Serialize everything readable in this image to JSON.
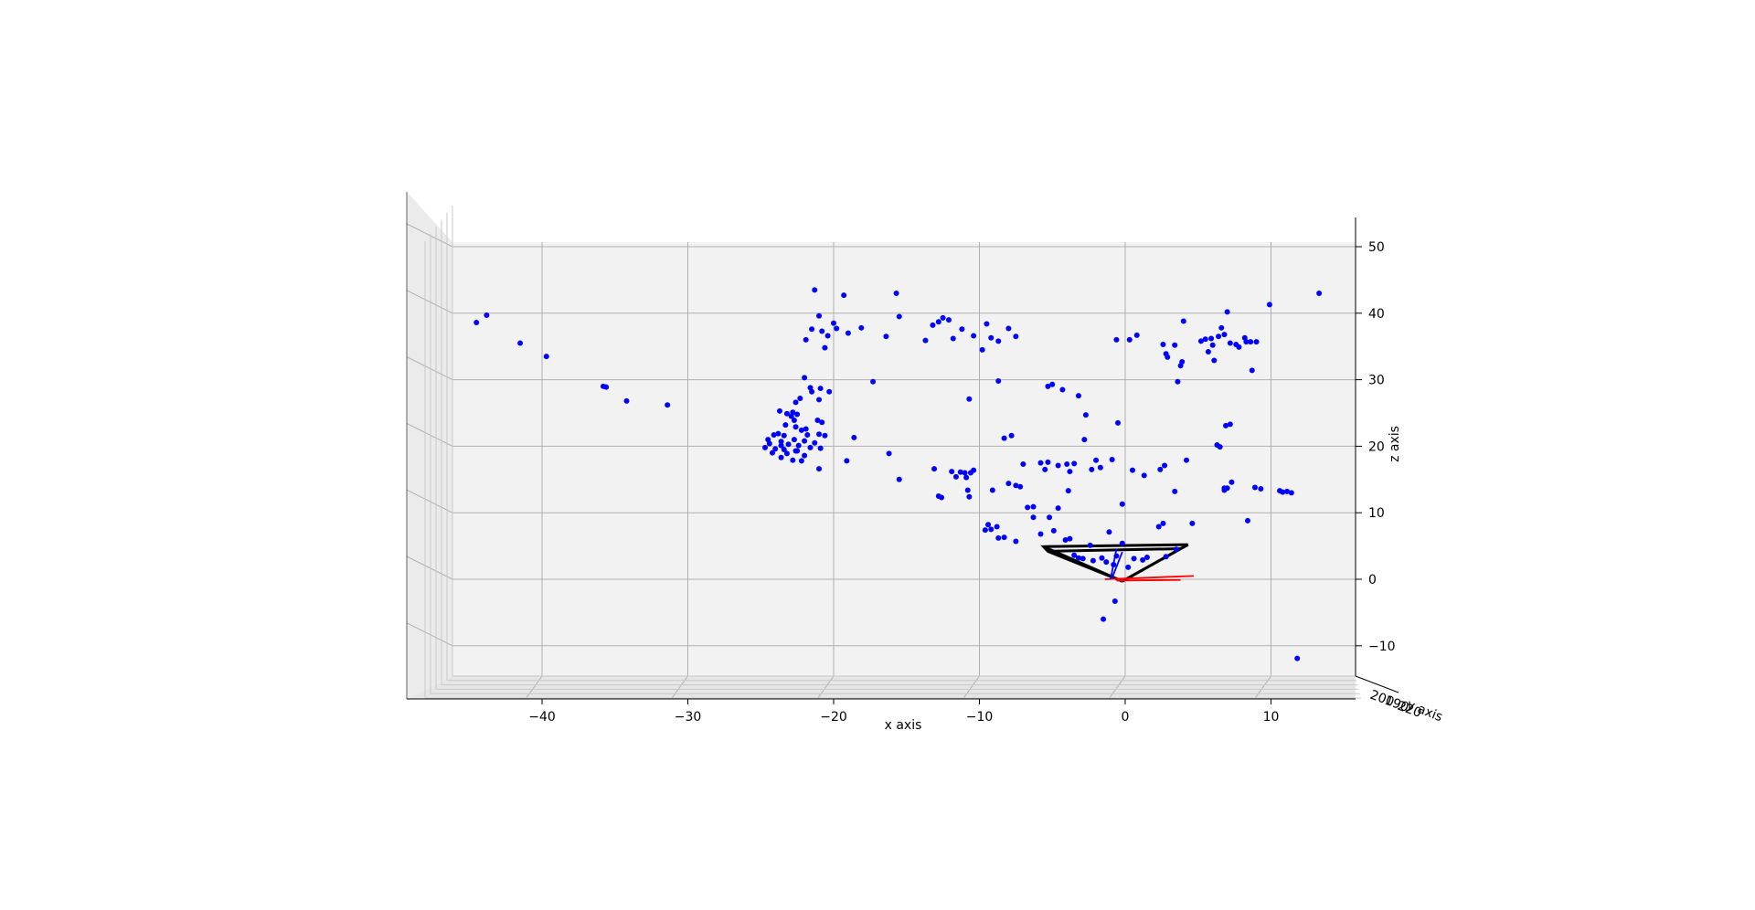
{
  "chart_data": {
    "type": "scatter",
    "projection": "3d",
    "view": "front (x–z plane, y axis pointing into the screen)",
    "title": "",
    "xlabel": "x axis",
    "ylabel": "y axis",
    "zlabel": "z axis",
    "xlim": [
      -50,
      15
    ],
    "zlim": [
      -15,
      55
    ],
    "x_ticks": [
      -40,
      -30,
      -20,
      -10,
      0,
      10
    ],
    "x_tick_labels": [
      "−40",
      "−30",
      "−20",
      "−10",
      "0",
      "10"
    ],
    "z_ticks": [
      -10,
      0,
      10,
      20,
      30,
      40,
      50
    ],
    "z_tick_labels": [
      "−10",
      "0",
      "10",
      "20",
      "30",
      "40",
      "50"
    ],
    "y_tick_labels_visible": "200 190 210 220 230 (overlapping)",
    "grid": true,
    "point_color": "#0000ff",
    "points": [
      [
        -44.5,
        38.6
      ],
      [
        -43.8,
        39.7
      ],
      [
        -41.5,
        35.5
      ],
      [
        -39.7,
        33.5
      ],
      [
        -35.8,
        29
      ],
      [
        -35.6,
        28.9
      ],
      [
        -34.2,
        26.8
      ],
      [
        -31.4,
        26.2
      ],
      [
        -21.9,
        36
      ],
      [
        -21.5,
        37.6
      ],
      [
        -21.3,
        43.5
      ],
      [
        -21,
        39.6
      ],
      [
        -20.8,
        37.3
      ],
      [
        -20.6,
        34.8
      ],
      [
        -20.4,
        36.6
      ],
      [
        -20,
        38.5
      ],
      [
        -19.8,
        37.7
      ],
      [
        -19.3,
        42.7
      ],
      [
        -19,
        37
      ],
      [
        -18.1,
        37.8
      ],
      [
        -16.4,
        36.5
      ],
      [
        -15.7,
        43
      ],
      [
        -15.5,
        39.5
      ],
      [
        -13.7,
        35.9
      ],
      [
        -13.2,
        38.2
      ],
      [
        -12.8,
        38.7
      ],
      [
        -12.5,
        39.3
      ],
      [
        -12.1,
        39
      ],
      [
        -11.8,
        36.2
      ],
      [
        -11.2,
        37.6
      ],
      [
        -10.4,
        36.6
      ],
      [
        -9.8,
        34.5
      ],
      [
        -9.5,
        38.4
      ],
      [
        -9.2,
        36.3
      ],
      [
        -8.7,
        35.8
      ],
      [
        -8,
        37.7
      ],
      [
        -7.5,
        36.5
      ],
      [
        -0.6,
        36
      ],
      [
        0.3,
        36
      ],
      [
        0.8,
        36.7
      ],
      [
        2.6,
        35.3
      ],
      [
        2.8,
        33.9
      ],
      [
        2.9,
        33.4
      ],
      [
        3.4,
        35.2
      ],
      [
        3.6,
        29.7
      ],
      [
        3.8,
        32.1
      ],
      [
        3.9,
        32.7
      ],
      [
        4,
        38.8
      ],
      [
        5.2,
        35.8
      ],
      [
        5.5,
        36.1
      ],
      [
        5.7,
        34.2
      ],
      [
        5.9,
        36.2
      ],
      [
        6,
        35.2
      ],
      [
        6.1,
        32.9
      ],
      [
        6.4,
        36.5
      ],
      [
        6.6,
        37.8
      ],
      [
        6.8,
        36.8
      ],
      [
        7,
        40.2
      ],
      [
        7.2,
        35.5
      ],
      [
        7.6,
        35.3
      ],
      [
        7.8,
        34.9
      ],
      [
        8.2,
        36.3
      ],
      [
        8.3,
        35.7
      ],
      [
        8.6,
        35.7
      ],
      [
        8.7,
        31.4
      ],
      [
        9,
        35.7
      ],
      [
        9.9,
        41.3
      ],
      [
        13.3,
        43
      ],
      [
        -22,
        30.3
      ],
      [
        -21.6,
        28.8
      ],
      [
        -21.5,
        28.2
      ],
      [
        -20.9,
        28.7
      ],
      [
        -20.3,
        28.2
      ],
      [
        -21,
        27
      ],
      [
        -22.6,
        26.6
      ],
      [
        -22.3,
        27.2
      ],
      [
        -23.7,
        25.3
      ],
      [
        -22.8,
        25.1
      ],
      [
        -22.5,
        24.8
      ],
      [
        -23.2,
        24.9
      ],
      [
        -22.9,
        24.5
      ],
      [
        -22.7,
        23.9
      ],
      [
        -21.1,
        23.9
      ],
      [
        -20.8,
        23.6
      ],
      [
        -23.3,
        23.2
      ],
      [
        -22.6,
        22.9
      ],
      [
        -21.9,
        22.6
      ],
      [
        -22.2,
        22.4
      ],
      [
        -23.8,
        21.9
      ],
      [
        -24.1,
        21.7
      ],
      [
        -23.4,
        21.6
      ],
      [
        -21.8,
        21.7
      ],
      [
        -21,
        21.8
      ],
      [
        -20.6,
        21.6
      ],
      [
        -24.5,
        21
      ],
      [
        -23.6,
        20.7
      ],
      [
        -22.7,
        21
      ],
      [
        -22,
        20.8
      ],
      [
        -21.3,
        20.5
      ],
      [
        -24.4,
        20.4
      ],
      [
        -23.1,
        20.3
      ],
      [
        -22.4,
        20.1
      ],
      [
        -23.6,
        20.1
      ],
      [
        -24.7,
        19.8
      ],
      [
        -24,
        19.6
      ],
      [
        -23.4,
        19.5
      ],
      [
        -22.6,
        19.3
      ],
      [
        -21.6,
        19.8
      ],
      [
        -20.9,
        19.7
      ],
      [
        -24.2,
        19
      ],
      [
        -23.2,
        18.9
      ],
      [
        -22.5,
        19.3
      ],
      [
        -22,
        18.6
      ],
      [
        -23.6,
        18.3
      ],
      [
        -22.8,
        17.9
      ],
      [
        -22.2,
        17.8
      ],
      [
        -21,
        16.6
      ],
      [
        -19.1,
        17.8
      ],
      [
        -18.6,
        21.3
      ],
      [
        -17.3,
        29.7
      ],
      [
        -16.2,
        18.9
      ],
      [
        -15.5,
        15
      ],
      [
        -13.1,
        16.6
      ],
      [
        -12.8,
        12.5
      ],
      [
        -12.6,
        12.3
      ],
      [
        -11.9,
        16.2
      ],
      [
        -11.6,
        15.4
      ],
      [
        -11.3,
        16.1
      ],
      [
        -11,
        16
      ],
      [
        -10.9,
        15.3
      ],
      [
        -10.6,
        16
      ],
      [
        -10.4,
        16.4
      ],
      [
        -10.8,
        13.4
      ],
      [
        -10.7,
        12.4
      ],
      [
        -10.7,
        27.1
      ],
      [
        -9.1,
        13.4
      ],
      [
        -8.7,
        29.8
      ],
      [
        -8.3,
        21.2
      ],
      [
        -8,
        14.4
      ],
      [
        -7.8,
        21.6
      ],
      [
        -7.5,
        14.1
      ],
      [
        -7.2,
        13.9
      ],
      [
        -7,
        17.3
      ],
      [
        -6.3,
        10.9
      ],
      [
        -5.8,
        17.5
      ],
      [
        -5.5,
        16.5
      ],
      [
        -5.3,
        29
      ],
      [
        -5,
        29.3
      ],
      [
        -5.3,
        17.6
      ],
      [
        -4.6,
        17.1
      ],
      [
        -4.3,
        28.5
      ],
      [
        -4,
        17.3
      ],
      [
        -3.8,
        16.2
      ],
      [
        -3.9,
        13.3
      ],
      [
        -3.5,
        17.4
      ],
      [
        -3.2,
        27.6
      ],
      [
        -2.8,
        21
      ],
      [
        -2.7,
        24.7
      ],
      [
        -2.3,
        16.5
      ],
      [
        -2,
        17.9
      ],
      [
        -1.7,
        16.8
      ],
      [
        -0.9,
        18
      ],
      [
        -0.5,
        23.5
      ],
      [
        -0.2,
        11.3
      ],
      [
        0.5,
        16.4
      ],
      [
        1.3,
        15.6
      ],
      [
        2.4,
        16.5
      ],
      [
        2.7,
        17.1
      ],
      [
        3.4,
        13.2
      ],
      [
        4.2,
        17.9
      ],
      [
        6.3,
        20.2
      ],
      [
        6.5,
        19.9
      ],
      [
        6.8,
        13.7
      ],
      [
        6.8,
        13.4
      ],
      [
        7,
        13.7
      ],
      [
        7.3,
        14.6
      ],
      [
        8.9,
        13.8
      ],
      [
        9.3,
        13.6
      ],
      [
        10.6,
        13.3
      ],
      [
        10.8,
        13.1
      ],
      [
        11.1,
        13.2
      ],
      [
        11.4,
        13
      ],
      [
        6.9,
        23.1
      ],
      [
        7.2,
        23.3
      ],
      [
        8.4,
        8.8
      ],
      [
        -9.6,
        7.4
      ],
      [
        -9.4,
        8.2
      ],
      [
        -9.2,
        7.5
      ],
      [
        -8.8,
        7.9
      ],
      [
        -8.7,
        6.2
      ],
      [
        -8.3,
        6.3
      ],
      [
        -7.5,
        5.7
      ],
      [
        -6.7,
        10.8
      ],
      [
        -6.3,
        9.3
      ],
      [
        -5.8,
        6.8
      ],
      [
        -5.2,
        9.3
      ],
      [
        -4.9,
        7.3
      ],
      [
        -4.6,
        10.7
      ],
      [
        -4.1,
        5.9
      ],
      [
        -3.8,
        6.1
      ],
      [
        -3.5,
        3.6
      ],
      [
        -3.2,
        3.2
      ],
      [
        -2.9,
        3.1
      ],
      [
        -2.4,
        5.1
      ],
      [
        -2.2,
        2.8
      ],
      [
        -1.6,
        3.2
      ],
      [
        -1.3,
        2.6
      ],
      [
        -1.1,
        7.1
      ],
      [
        -0.8,
        2.2
      ],
      [
        -0.6,
        3.5
      ],
      [
        -0.2,
        5.4
      ],
      [
        0.2,
        1.8
      ],
      [
        0.6,
        3.1
      ],
      [
        1.2,
        2.9
      ],
      [
        1.5,
        3.3
      ],
      [
        2.3,
        7.9
      ],
      [
        2.6,
        8.4
      ],
      [
        2.8,
        3.4
      ],
      [
        3.5,
        4.5
      ],
      [
        4.6,
        8.4
      ],
      [
        -0.7,
        -3.3
      ],
      [
        -1.5,
        -6
      ],
      [
        11.8,
        -11.9
      ]
    ],
    "camera_frustum_color": "#000000",
    "axis_lines": [
      {
        "color": "#ff0000",
        "from": [
          -1.4,
          0
        ],
        "to": [
          4.7,
          0.5
        ]
      },
      {
        "color": "#ff0000",
        "from": [
          -0.6,
          -0.2
        ],
        "to": [
          3.8,
          -0.1
        ]
      },
      {
        "color": "#0000ff",
        "from": [
          -1,
          0
        ],
        "to": [
          -0.6,
          4.6
        ]
      },
      {
        "color": "#0000ff",
        "from": [
          -0.9,
          0.2
        ],
        "to": [
          -0.2,
          4.1
        ]
      }
    ]
  }
}
